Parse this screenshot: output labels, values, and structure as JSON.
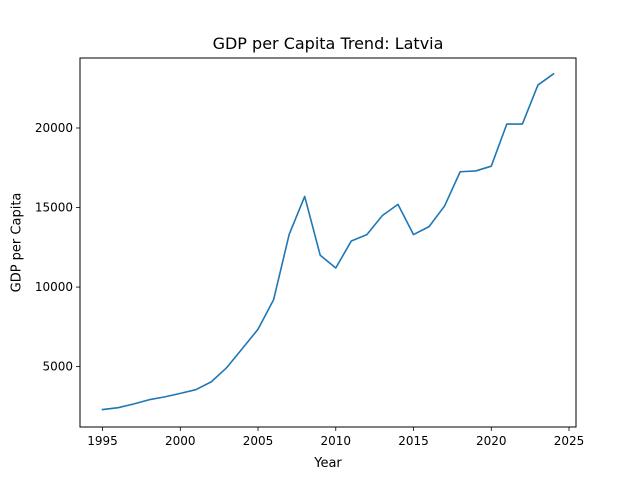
{
  "chart_data": {
    "type": "line",
    "title": "GDP per Capita Trend: Latvia",
    "xlabel": "Year",
    "ylabel": "GDP per Capita",
    "xlim": [
      1993.55,
      2025.45
    ],
    "ylim": [
      1205,
      24400
    ],
    "xticks": [
      1995,
      2000,
      2005,
      2010,
      2015,
      2020,
      2025
    ],
    "yticks": [
      5000,
      10000,
      15000,
      20000
    ],
    "grid": false,
    "line_color": "#1f77b4",
    "series": [
      {
        "x": [
          1995,
          1996,
          1997,
          1998,
          1999,
          2000,
          2001,
          2002,
          2003,
          2004,
          2005,
          2006,
          2007,
          2008,
          2009,
          2010,
          2011,
          2012,
          2013,
          2014,
          2015,
          2016,
          2017,
          2018,
          2019,
          2020,
          2021,
          2022,
          2023,
          2024
        ],
        "values": [
          2300,
          2420,
          2650,
          2920,
          3100,
          3320,
          3550,
          4050,
          4950,
          6150,
          7350,
          9200,
          13300,
          15700,
          12000,
          11200,
          12900,
          13300,
          14500,
          15200,
          13300,
          13800,
          15100,
          17250,
          17300,
          17600,
          20250,
          20250,
          22700,
          23400
        ]
      }
    ]
  }
}
